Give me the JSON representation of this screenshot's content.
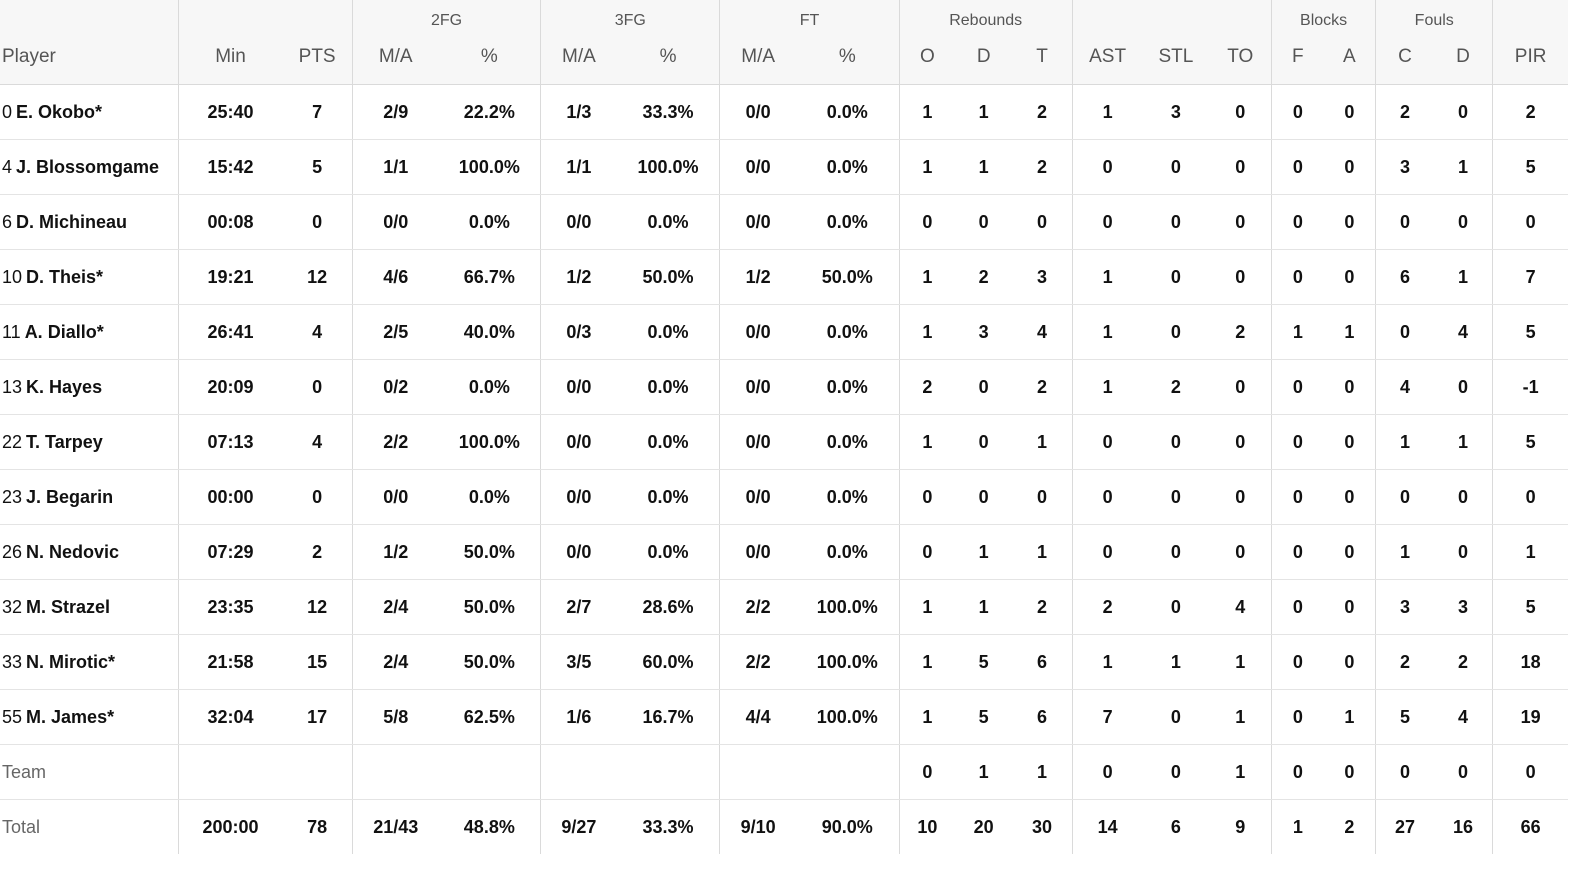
{
  "group_headers": {
    "fg2": "2FG",
    "fg3": "3FG",
    "ft": "FT",
    "rebounds": "Rebounds",
    "blocks": "Blocks",
    "fouls": "Fouls"
  },
  "columns": {
    "player": "Player",
    "min": "Min",
    "pts": "PTS",
    "fg2_ma": "M/A",
    "fg2_pct": "%",
    "fg3_ma": "M/A",
    "fg3_pct": "%",
    "ft_ma": "M/A",
    "ft_pct": "%",
    "reb_o": "O",
    "reb_d": "D",
    "reb_t": "T",
    "ast": "AST",
    "stl": "STL",
    "to": "TO",
    "blk_f": "F",
    "blk_a": "A",
    "foul_c": "C",
    "foul_d": "D",
    "pir": "PIR"
  },
  "rows": [
    {
      "num": "0",
      "name": "E. Okobo*",
      "min": "25:40",
      "pts": "7",
      "fg2_ma": "2/9",
      "fg2_pct": "22.2%",
      "fg3_ma": "1/3",
      "fg3_pct": "33.3%",
      "ft_ma": "0/0",
      "ft_pct": "0.0%",
      "reb_o": "1",
      "reb_d": "1",
      "reb_t": "2",
      "ast": "1",
      "stl": "3",
      "to": "0",
      "blk_f": "0",
      "blk_a": "0",
      "foul_c": "2",
      "foul_d": "0",
      "pir": "2"
    },
    {
      "num": "4",
      "name": "J. Blossomgame",
      "min": "15:42",
      "pts": "5",
      "fg2_ma": "1/1",
      "fg2_pct": "100.0%",
      "fg3_ma": "1/1",
      "fg3_pct": "100.0%",
      "ft_ma": "0/0",
      "ft_pct": "0.0%",
      "reb_o": "1",
      "reb_d": "1",
      "reb_t": "2",
      "ast": "0",
      "stl": "0",
      "to": "0",
      "blk_f": "0",
      "blk_a": "0",
      "foul_c": "3",
      "foul_d": "1",
      "pir": "5"
    },
    {
      "num": "6",
      "name": "D. Michineau",
      "min": "00:08",
      "pts": "0",
      "fg2_ma": "0/0",
      "fg2_pct": "0.0%",
      "fg3_ma": "0/0",
      "fg3_pct": "0.0%",
      "ft_ma": "0/0",
      "ft_pct": "0.0%",
      "reb_o": "0",
      "reb_d": "0",
      "reb_t": "0",
      "ast": "0",
      "stl": "0",
      "to": "0",
      "blk_f": "0",
      "blk_a": "0",
      "foul_c": "0",
      "foul_d": "0",
      "pir": "0"
    },
    {
      "num": "10",
      "name": "D. Theis*",
      "min": "19:21",
      "pts": "12",
      "fg2_ma": "4/6",
      "fg2_pct": "66.7%",
      "fg3_ma": "1/2",
      "fg3_pct": "50.0%",
      "ft_ma": "1/2",
      "ft_pct": "50.0%",
      "reb_o": "1",
      "reb_d": "2",
      "reb_t": "3",
      "ast": "1",
      "stl": "0",
      "to": "0",
      "blk_f": "0",
      "blk_a": "0",
      "foul_c": "6",
      "foul_d": "1",
      "pir": "7"
    },
    {
      "num": "11",
      "name": "A. Diallo*",
      "min": "26:41",
      "pts": "4",
      "fg2_ma": "2/5",
      "fg2_pct": "40.0%",
      "fg3_ma": "0/3",
      "fg3_pct": "0.0%",
      "ft_ma": "0/0",
      "ft_pct": "0.0%",
      "reb_o": "1",
      "reb_d": "3",
      "reb_t": "4",
      "ast": "1",
      "stl": "0",
      "to": "2",
      "blk_f": "1",
      "blk_a": "1",
      "foul_c": "0",
      "foul_d": "4",
      "pir": "5"
    },
    {
      "num": "13",
      "name": "K. Hayes",
      "min": "20:09",
      "pts": "0",
      "fg2_ma": "0/2",
      "fg2_pct": "0.0%",
      "fg3_ma": "0/0",
      "fg3_pct": "0.0%",
      "ft_ma": "0/0",
      "ft_pct": "0.0%",
      "reb_o": "2",
      "reb_d": "0",
      "reb_t": "2",
      "ast": "1",
      "stl": "2",
      "to": "0",
      "blk_f": "0",
      "blk_a": "0",
      "foul_c": "4",
      "foul_d": "0",
      "pir": "-1"
    },
    {
      "num": "22",
      "name": "T. Tarpey",
      "min": "07:13",
      "pts": "4",
      "fg2_ma": "2/2",
      "fg2_pct": "100.0%",
      "fg3_ma": "0/0",
      "fg3_pct": "0.0%",
      "ft_ma": "0/0",
      "ft_pct": "0.0%",
      "reb_o": "1",
      "reb_d": "0",
      "reb_t": "1",
      "ast": "0",
      "stl": "0",
      "to": "0",
      "blk_f": "0",
      "blk_a": "0",
      "foul_c": "1",
      "foul_d": "1",
      "pir": "5"
    },
    {
      "num": "23",
      "name": "J. Begarin",
      "min": "00:00",
      "pts": "0",
      "fg2_ma": "0/0",
      "fg2_pct": "0.0%",
      "fg3_ma": "0/0",
      "fg3_pct": "0.0%",
      "ft_ma": "0/0",
      "ft_pct": "0.0%",
      "reb_o": "0",
      "reb_d": "0",
      "reb_t": "0",
      "ast": "0",
      "stl": "0",
      "to": "0",
      "blk_f": "0",
      "blk_a": "0",
      "foul_c": "0",
      "foul_d": "0",
      "pir": "0"
    },
    {
      "num": "26",
      "name": "N. Nedovic",
      "min": "07:29",
      "pts": "2",
      "fg2_ma": "1/2",
      "fg2_pct": "50.0%",
      "fg3_ma": "0/0",
      "fg3_pct": "0.0%",
      "ft_ma": "0/0",
      "ft_pct": "0.0%",
      "reb_o": "0",
      "reb_d": "1",
      "reb_t": "1",
      "ast": "0",
      "stl": "0",
      "to": "0",
      "blk_f": "0",
      "blk_a": "0",
      "foul_c": "1",
      "foul_d": "0",
      "pir": "1"
    },
    {
      "num": "32",
      "name": "M. Strazel",
      "min": "23:35",
      "pts": "12",
      "fg2_ma": "2/4",
      "fg2_pct": "50.0%",
      "fg3_ma": "2/7",
      "fg3_pct": "28.6%",
      "ft_ma": "2/2",
      "ft_pct": "100.0%",
      "reb_o": "1",
      "reb_d": "1",
      "reb_t": "2",
      "ast": "2",
      "stl": "0",
      "to": "4",
      "blk_f": "0",
      "blk_a": "0",
      "foul_c": "3",
      "foul_d": "3",
      "pir": "5"
    },
    {
      "num": "33",
      "name": "N. Mirotic*",
      "min": "21:58",
      "pts": "15",
      "fg2_ma": "2/4",
      "fg2_pct": "50.0%",
      "fg3_ma": "3/5",
      "fg3_pct": "60.0%",
      "ft_ma": "2/2",
      "ft_pct": "100.0%",
      "reb_o": "1",
      "reb_d": "5",
      "reb_t": "6",
      "ast": "1",
      "stl": "1",
      "to": "1",
      "blk_f": "0",
      "blk_a": "0",
      "foul_c": "2",
      "foul_d": "2",
      "pir": "18"
    },
    {
      "num": "55",
      "name": "M. James*",
      "min": "32:04",
      "pts": "17",
      "fg2_ma": "5/8",
      "fg2_pct": "62.5%",
      "fg3_ma": "1/6",
      "fg3_pct": "16.7%",
      "ft_ma": "4/4",
      "ft_pct": "100.0%",
      "reb_o": "1",
      "reb_d": "5",
      "reb_t": "6",
      "ast": "7",
      "stl": "0",
      "to": "1",
      "blk_f": "0",
      "blk_a": "1",
      "foul_c": "5",
      "foul_d": "4",
      "pir": "19"
    }
  ],
  "team": {
    "label": "Team",
    "reb_o": "0",
    "reb_d": "1",
    "reb_t": "1",
    "ast": "0",
    "stl": "0",
    "to": "1",
    "blk_f": "0",
    "blk_a": "0",
    "foul_c": "0",
    "foul_d": "0",
    "pir": "0"
  },
  "total": {
    "label": "Total",
    "min": "200:00",
    "pts": "78",
    "fg2_ma": "21/43",
    "fg2_pct": "48.8%",
    "fg3_ma": "9/27",
    "fg3_pct": "33.3%",
    "ft_ma": "9/10",
    "ft_pct": "90.0%",
    "reb_o": "10",
    "reb_d": "20",
    "reb_t": "30",
    "ast": "14",
    "stl": "6",
    "to": "9",
    "blk_f": "1",
    "blk_a": "2",
    "foul_c": "27",
    "foul_d": "16",
    "pir": "66"
  }
}
